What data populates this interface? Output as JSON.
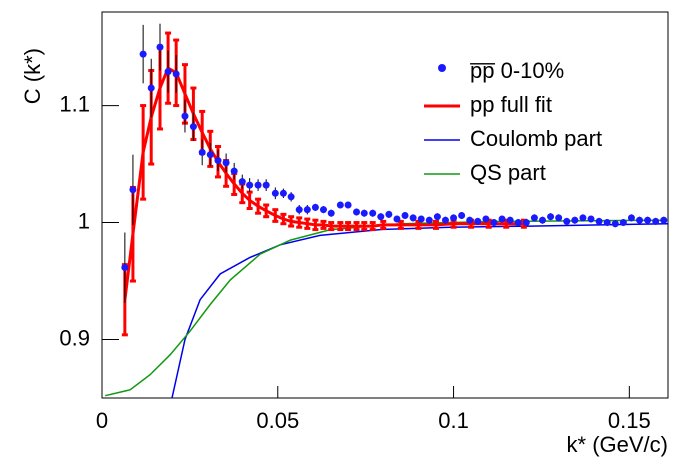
{
  "chart_data": {
    "type": "scatter",
    "x_label": "k* (GeV/c)",
    "y_label": "C (k*)",
    "xlim": [
      0,
      0.161
    ],
    "ylim": [
      0.85,
      1.18
    ],
    "xticks": [
      0,
      0.05,
      0.1,
      0.15
    ],
    "yticks": [
      0.9,
      1,
      1.1
    ],
    "legend": "top-right",
    "series": [
      {
        "name": "p̅p̅ 0-10%",
        "type": "scatter",
        "color": "#1a1aff",
        "x": [
          0.0065,
          0.0088,
          0.0117,
          0.014,
          0.0165,
          0.0188,
          0.0211,
          0.0236,
          0.026,
          0.0285,
          0.0308,
          0.033,
          0.0353,
          0.0376,
          0.0399,
          0.042,
          0.0444,
          0.0467,
          0.0493,
          0.0516,
          0.0538,
          0.0561,
          0.0584,
          0.0607,
          0.063,
          0.0652,
          0.0678,
          0.07,
          0.0724,
          0.0746,
          0.077,
          0.0793,
          0.0816,
          0.0839,
          0.0862,
          0.0885,
          0.0908,
          0.0931,
          0.0954,
          0.0977,
          0.1,
          0.1023,
          0.1046,
          0.1069,
          0.1092,
          0.1115,
          0.1138,
          0.1161,
          0.1184,
          0.1207,
          0.123,
          0.1253,
          0.1276,
          0.1299,
          0.1322,
          0.1345,
          0.1368,
          0.1391,
          0.1414,
          0.1437,
          0.146,
          0.1483,
          0.1506,
          0.1529,
          0.1552,
          0.1575,
          0.1598
        ],
        "values": [
          0.9615,
          1.028,
          1.144,
          1.115,
          1.15,
          1.129,
          1.127,
          1.091,
          1.082,
          1.06,
          1.058,
          1.053,
          1.051,
          1.044,
          1.035,
          1.032,
          1.032,
          1.032,
          1.025,
          1.025,
          1.022,
          1.011,
          1.011,
          1.013,
          1.011,
          1.008,
          1.015,
          1.015,
          1.009,
          1.008,
          1.008,
          1.005,
          1.007,
          1.003,
          1.006,
          1.004,
          1.003,
          1.002,
          1.005,
          1.002,
          1.004,
          1.006,
          1.002,
          1.001,
          1.003,
          1.0,
          1.003,
          1.002,
          1.0,
          1.0,
          1.004,
          1.002,
          1.005,
          1.004,
          1.001,
          1.002,
          1.004,
          1.003,
          1.001,
          1.0,
          0.999,
          1.0,
          1.004,
          1.002,
          1.002,
          1.001,
          1.002
        ],
        "errors": [
          0.03,
          0.03,
          0.025,
          0.025,
          0.02,
          0.018,
          0.016,
          0.014,
          0.012,
          0.011,
          0.01,
          0.009,
          0.008,
          0.007,
          0.006,
          0.006,
          0.005,
          0.005,
          0.005,
          0.004,
          0.004,
          0.004,
          0.004,
          0.003,
          0.003,
          0.003,
          0.003,
          0.003,
          0.003,
          0.003,
          0.003,
          0.003,
          0.003,
          0.003,
          0.003,
          0.003,
          0.003,
          0.003,
          0.003,
          0.003,
          0.003,
          0.003,
          0.003,
          0.003,
          0.003,
          0.003,
          0.003,
          0.003,
          0.003,
          0.003,
          0.003,
          0.003,
          0.003,
          0.003,
          0.003,
          0.003,
          0.003,
          0.003,
          0.003,
          0.003,
          0.003,
          0.003,
          0.003,
          0.003,
          0.003,
          0.003,
          0.003
        ]
      },
      {
        "name": "pp full fit",
        "type": "fit",
        "color": "#ff0000",
        "x": [
          0.0065,
          0.0088,
          0.0117,
          0.014,
          0.0165,
          0.0188,
          0.0211,
          0.0236,
          0.026,
          0.0285,
          0.0308,
          0.033,
          0.0353,
          0.0376,
          0.0399,
          0.042,
          0.0444,
          0.0467,
          0.0493,
          0.0516,
          0.0538,
          0.0561,
          0.0584,
          0.0607,
          0.063,
          0.0652,
          0.0678,
          0.07,
          0.0724,
          0.0746,
          0.077,
          0.08,
          0.085,
          0.09,
          0.095,
          0.1,
          0.105,
          0.11,
          0.115,
          0.12
        ],
        "values": [
          0.934,
          0.99,
          1.06,
          1.09,
          1.115,
          1.132,
          1.128,
          1.11,
          1.093,
          1.077,
          1.063,
          1.052,
          1.042,
          1.033,
          1.025,
          1.019,
          1.014,
          1.01,
          1.006,
          1.003,
          1.001,
          1.0,
          0.999,
          0.998,
          0.998,
          0.997,
          0.997,
          0.997,
          0.997,
          0.997,
          0.997,
          0.998,
          0.998,
          0.998,
          0.998,
          0.999,
          0.999,
          0.999,
          0.999,
          0.999
        ],
        "errors": [
          0.03,
          0.04,
          0.04,
          0.04,
          0.035,
          0.03,
          0.028,
          0.025,
          0.022,
          0.018,
          0.015,
          0.013,
          0.011,
          0.009,
          0.008,
          0.007,
          0.006,
          0.005,
          0.005,
          0.004,
          0.004,
          0.004,
          0.004,
          0.004,
          0.003,
          0.003,
          0.003,
          0.003,
          0.003,
          0.003,
          0.003,
          0.003,
          0.003,
          0.003,
          0.003,
          0.003,
          0.003,
          0.003,
          0.003,
          0.003
        ]
      },
      {
        "name": "Coulomb part",
        "type": "line",
        "color": "#0000ee",
        "x": [
          0.0199,
          0.0236,
          0.0279,
          0.0336,
          0.042,
          0.0507,
          0.062,
          0.079,
          0.099,
          0.122,
          0.161
        ],
        "values": [
          0.85,
          0.9,
          0.934,
          0.956,
          0.97,
          0.981,
          0.989,
          0.994,
          0.996,
          0.997,
          0.999
        ]
      },
      {
        "name": "QS part",
        "type": "line",
        "color": "#119911",
        "x": [
          0.0009,
          0.008,
          0.0137,
          0.0194,
          0.025,
          0.0308,
          0.0365,
          0.045,
          0.0536,
          0.065,
          0.085,
          0.113,
          0.161
        ],
        "values": [
          0.852,
          0.857,
          0.87,
          0.887,
          0.907,
          0.93,
          0.951,
          0.973,
          0.985,
          0.994,
          0.999,
          1.001,
          1.002
        ]
      }
    ]
  }
}
